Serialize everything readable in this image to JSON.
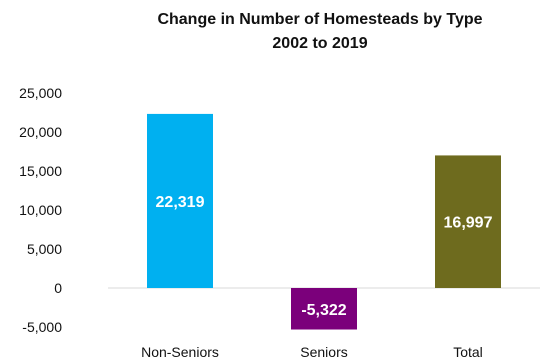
{
  "chart_data": {
    "type": "bar",
    "title_lines": [
      "Change in Number of Homesteads by Type",
      "2002 to 2019"
    ],
    "categories": [
      "Non-Seniors",
      "Seniors",
      "Total"
    ],
    "values": [
      22319,
      -5322,
      16997
    ],
    "data_labels": [
      "22,319",
      "-5,322",
      "16,997"
    ],
    "colors": [
      "#00b0f0",
      "#7b007b",
      "#6e6b1e"
    ],
    "ylim": [
      -5000,
      25000
    ],
    "yticks": [
      25000,
      20000,
      15000,
      10000,
      5000,
      0,
      -5000
    ],
    "ytick_labels": [
      "25,000",
      "20,000",
      "15,000",
      "10,000",
      "5,000",
      "0",
      "-5,000"
    ],
    "grid": false,
    "legend": "none",
    "xlabel": "",
    "ylabel": ""
  }
}
